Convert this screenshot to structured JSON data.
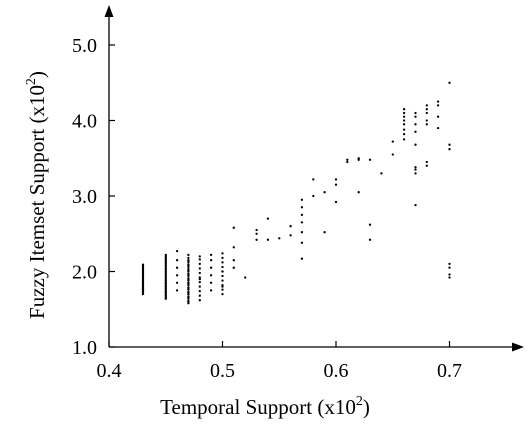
{
  "chart_data": {
    "type": "scatter",
    "title": "",
    "xlabel": "Temporal Support (x10",
    "xlabel_exponent": "2",
    "xlabel_suffix": ")",
    "ylabel": "Fuzzy Itemset Support (x10",
    "ylabel_exponent": "2",
    "ylabel_suffix": ")",
    "xlim": [
      0.4,
      0.76
    ],
    "ylim": [
      1.0,
      5.4
    ],
    "xticks": [
      0.4,
      0.5,
      0.6,
      0.7
    ],
    "xtick_labels": [
      "0.4",
      "0.5",
      "0.6",
      "0.7"
    ],
    "yticks": [
      1.0,
      2.0,
      3.0,
      4.0,
      5.0
    ],
    "ytick_labels": [
      "1.0",
      "2.0",
      "3.0",
      "4.0",
      "5.0"
    ],
    "grid": false,
    "legend": "none",
    "marker_color": "#000000",
    "series": [
      {
        "x": [
          0.43,
          0.43,
          0.43,
          0.43,
          0.43,
          0.43,
          0.43,
          0.43,
          0.43,
          0.43,
          0.43,
          0.43,
          0.43,
          0.43,
          0.43,
          0.43,
          0.43,
          0.43,
          0.43,
          0.43,
          0.43,
          0.43,
          0.43,
          0.43,
          0.43,
          0.43,
          0.43,
          0.45,
          0.45,
          0.45,
          0.45,
          0.45,
          0.45,
          0.45,
          0.45,
          0.45,
          0.45,
          0.45,
          0.45,
          0.45,
          0.45,
          0.45,
          0.45,
          0.45,
          0.45,
          0.45,
          0.45,
          0.45,
          0.45,
          0.45,
          0.45,
          0.45,
          0.45,
          0.45,
          0.45,
          0.45,
          0.45,
          0.46,
          0.46,
          0.46,
          0.46,
          0.46,
          0.46,
          0.47,
          0.47,
          0.47,
          0.47,
          0.47,
          0.47,
          0.47,
          0.47,
          0.47,
          0.47,
          0.47,
          0.47,
          0.47,
          0.47,
          0.47,
          0.47,
          0.47,
          0.47,
          0.47,
          0.47,
          0.47,
          0.47,
          0.47,
          0.47,
          0.47,
          0.47,
          0.47,
          0.47,
          0.47,
          0.47,
          0.47,
          0.47,
          0.48,
          0.48,
          0.48,
          0.48,
          0.48,
          0.48,
          0.48,
          0.48,
          0.48,
          0.48,
          0.48,
          0.48,
          0.49,
          0.49,
          0.49,
          0.49,
          0.49,
          0.49,
          0.5,
          0.5,
          0.5,
          0.5,
          0.5,
          0.5,
          0.5,
          0.5,
          0.5,
          0.5,
          0.5,
          0.5,
          0.51,
          0.51,
          0.51,
          0.51,
          0.52,
          0.53,
          0.53,
          0.53,
          0.54,
          0.54,
          0.55,
          0.56,
          0.56,
          0.57,
          0.57,
          0.57,
          0.57,
          0.57,
          0.57,
          0.57,
          0.58,
          0.58,
          0.59,
          0.59,
          0.6,
          0.6,
          0.6,
          0.61,
          0.61,
          0.62,
          0.62,
          0.62,
          0.63,
          0.63,
          0.63,
          0.64,
          0.65,
          0.65,
          0.66,
          0.66,
          0.66,
          0.66,
          0.66,
          0.66,
          0.66,
          0.66,
          0.67,
          0.67,
          0.67,
          0.67,
          0.67,
          0.67,
          0.67,
          0.67,
          0.67,
          0.68,
          0.68,
          0.68,
          0.68,
          0.68,
          0.68,
          0.68,
          0.69,
          0.69,
          0.69,
          0.69,
          0.7,
          0.7,
          0.7,
          0.7,
          0.7,
          0.7,
          0.7
        ],
        "y": [
          1.7,
          1.73,
          1.76,
          1.79,
          1.82,
          1.85,
          1.88,
          1.91,
          1.94,
          1.97,
          2.0,
          2.03,
          2.06,
          2.09,
          1.72,
          1.78,
          1.84,
          1.9,
          1.96,
          2.02,
          2.08,
          1.75,
          1.81,
          1.87,
          1.93,
          1.99,
          2.05,
          1.64,
          1.68,
          1.72,
          1.76,
          1.8,
          1.84,
          1.88,
          1.92,
          1.96,
          2.0,
          2.04,
          2.08,
          2.12,
          2.16,
          2.2,
          1.66,
          1.7,
          1.74,
          1.78,
          1.82,
          1.86,
          1.9,
          1.94,
          1.98,
          2.02,
          2.06,
          2.1,
          2.14,
          2.18,
          2.22,
          1.85,
          1.95,
          2.05,
          2.15,
          2.27,
          1.75,
          1.58,
          1.61,
          1.64,
          1.67,
          1.7,
          1.73,
          1.76,
          1.79,
          1.82,
          1.85,
          1.88,
          1.91,
          1.94,
          1.97,
          2.0,
          2.03,
          2.06,
          2.09,
          2.12,
          2.15,
          2.18,
          2.22,
          1.6,
          1.66,
          1.72,
          1.78,
          1.84,
          1.9,
          1.96,
          2.02,
          2.08,
          2.14,
          1.62,
          1.68,
          1.74,
          1.8,
          1.86,
          1.92,
          1.98,
          2.04,
          2.1,
          2.16,
          2.2,
          1.9,
          1.75,
          1.85,
          1.95,
          2.05,
          2.15,
          2.22,
          1.7,
          1.76,
          1.82,
          1.88,
          1.94,
          2.0,
          2.06,
          2.12,
          2.18,
          2.24,
          1.8,
          2.0,
          2.05,
          2.15,
          2.32,
          2.58,
          1.92,
          2.42,
          2.5,
          2.55,
          2.42,
          2.7,
          2.44,
          2.48,
          2.6,
          2.17,
          2.38,
          2.52,
          2.65,
          2.75,
          2.85,
          2.95,
          3.0,
          3.22,
          2.52,
          3.05,
          2.92,
          3.15,
          3.22,
          3.45,
          3.48,
          3.05,
          3.48,
          3.5,
          2.42,
          2.62,
          3.48,
          3.3,
          3.55,
          3.72,
          3.75,
          3.82,
          3.88,
          3.95,
          4.0,
          4.05,
          4.1,
          4.15,
          2.88,
          3.3,
          3.35,
          3.38,
          3.68,
          3.85,
          3.95,
          4.05,
          4.1,
          3.4,
          3.45,
          3.95,
          4.0,
          4.1,
          4.15,
          4.2,
          3.9,
          4.05,
          4.2,
          4.25,
          1.92,
          1.96,
          2.05,
          2.1,
          3.62,
          3.68,
          4.5
        ]
      }
    ]
  }
}
